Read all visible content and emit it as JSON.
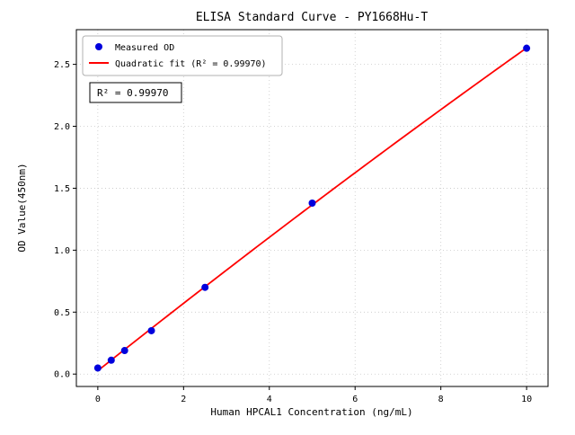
{
  "chart_data": {
    "type": "scatter",
    "title": "ELISA Standard Curve - PY1668Hu-T",
    "xlabel": "Human HPCAL1 Concentration (ng/mL)",
    "ylabel": "OD Value(450nm)",
    "xlim": [
      -0.5,
      10.5
    ],
    "ylim": [
      -0.1,
      2.78
    ],
    "xticks": [
      0,
      2,
      4,
      6,
      8,
      10
    ],
    "xtick_labels": [
      "0",
      "2",
      "4",
      "6",
      "8",
      "10"
    ],
    "yticks": [
      0.0,
      0.5,
      1.0,
      1.5,
      2.0,
      2.5
    ],
    "ytick_labels": [
      "0.0",
      "0.5",
      "1.0",
      "1.5",
      "2.0",
      "2.5"
    ],
    "grid": true,
    "grid_color": "#c8c8c8",
    "legend_position": "upper-left",
    "series": [
      {
        "name": "Measured OD",
        "type": "scatter",
        "color": "#0000dd",
        "x": [
          0,
          0.313,
          0.625,
          1.25,
          2.5,
          5,
          10
        ],
        "y": [
          0.049,
          0.112,
          0.19,
          0.35,
          0.7,
          1.38,
          2.63
        ]
      },
      {
        "name": "Quadratic fit (R² = 0.99970)",
        "type": "line",
        "fit": "quadratic",
        "color": "#ff0000",
        "x_range": [
          0,
          10
        ]
      }
    ],
    "annotation": "R² = 0.99970"
  }
}
